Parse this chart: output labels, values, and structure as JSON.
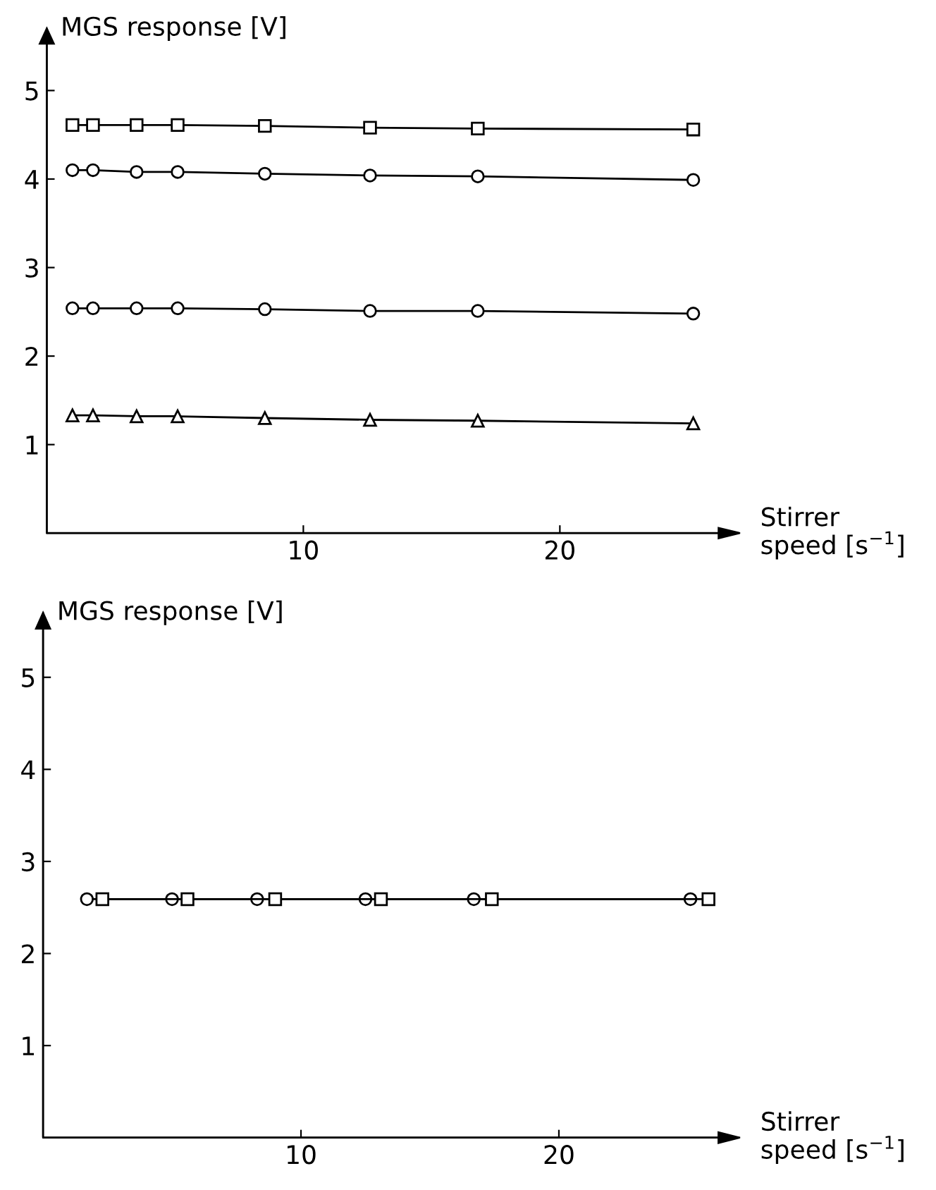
{
  "chart_data": [
    {
      "type": "line",
      "ylabel": "MGS response [V]",
      "xlabel": "Stirrer\nspeed [s$^{−1}$]",
      "xlim": [
        0,
        27
      ],
      "ylim": [
        0,
        5.7
      ],
      "xticks": [
        10,
        20
      ],
      "yticks": [
        1,
        2,
        3,
        4,
        5
      ],
      "line_style": "solid",
      "series": [
        {
          "color": "#000000",
          "marker": "square",
          "x": [
            1,
            1.8,
            3.5,
            5.1,
            8.5,
            12.6,
            16.8,
            25.2
          ],
          "values": [
            4.61,
            4.61,
            4.61,
            4.61,
            4.6,
            4.58,
            4.57,
            4.56
          ]
        },
        {
          "color": "#000000",
          "marker": "circle",
          "x": [
            1,
            1.8,
            3.5,
            5.1,
            8.5,
            12.6,
            16.8,
            25.2
          ],
          "values": [
            4.1,
            4.1,
            4.08,
            4.08,
            4.06,
            4.04,
            4.03,
            3.99
          ]
        },
        {
          "color": "#000000",
          "marker": "circle",
          "x": [
            1,
            1.8,
            3.5,
            5.1,
            8.5,
            12.6,
            16.8,
            25.2
          ],
          "values": [
            2.54,
            2.54,
            2.54,
            2.54,
            2.53,
            2.51,
            2.51,
            2.48
          ]
        },
        {
          "color": "#000000",
          "marker": "triangle",
          "x": [
            1,
            1.8,
            3.5,
            5.1,
            8.5,
            12.6,
            16.8,
            25.2
          ],
          "values": [
            1.33,
            1.33,
            1.32,
            1.32,
            1.3,
            1.28,
            1.27,
            1.24
          ]
        }
      ]
    },
    {
      "type": "line",
      "ylabel": "MGS response [V]",
      "xlabel": "Stirrer\nspeed [s$^{−1}$]",
      "xlim": [
        0,
        27
      ],
      "ylim": [
        0,
        5.7
      ],
      "xticks": [
        10,
        20
      ],
      "yticks": [
        1,
        2,
        3,
        4,
        5
      ],
      "line_style": "solid",
      "series": [
        {
          "color": "#000000",
          "marker": "circle",
          "x": [
            1.7,
            5.0,
            8.3,
            12.5,
            16.7,
            25.1
          ],
          "values": [
            2.59,
            2.59,
            2.59,
            2.59,
            2.59,
            2.59
          ]
        },
        {
          "color": "#000000",
          "marker": "square",
          "x": [
            2.3,
            5.6,
            9.0,
            13.1,
            17.4,
            25.8
          ],
          "values": [
            2.59,
            2.59,
            2.59,
            2.59,
            2.59,
            2.59
          ]
        }
      ]
    }
  ]
}
